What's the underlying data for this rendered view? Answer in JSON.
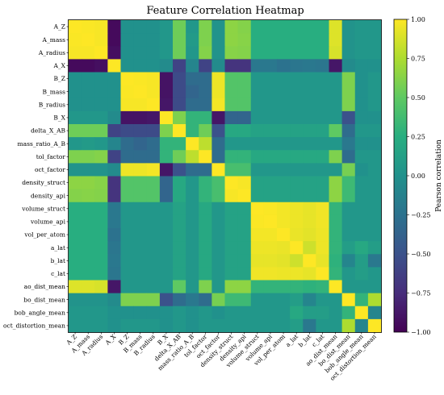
{
  "chart_data": {
    "type": "heatmap",
    "title": "Feature Correlation Heatmap",
    "labels": [
      "A_Z",
      "A_mass",
      "A_radius",
      "A_X",
      "B_Z",
      "B_mass",
      "B_radius",
      "B_X",
      "delta_X_AB",
      "mass_ratio_A_B",
      "tol_factor",
      "oct_factor",
      "density_struct",
      "density_api",
      "volume_struct",
      "volume_api",
      "vol_per_atom",
      "a_lat",
      "b_lat",
      "c_lat",
      "ao_dist_mean",
      "bo_dist_mean",
      "bob_angle_mean",
      "oct_distortion_mean"
    ],
    "values": [
      [
        1.0,
        0.99,
        0.98,
        -0.95,
        0.0,
        0.0,
        0.0,
        0.05,
        0.55,
        0.05,
        0.6,
        0.02,
        0.65,
        0.62,
        0.25,
        0.25,
        0.25,
        0.25,
        0.25,
        0.25,
        0.9,
        0.02,
        0.05,
        0.05
      ],
      [
        0.99,
        1.0,
        0.98,
        -0.95,
        0.0,
        0.0,
        0.0,
        0.05,
        0.55,
        0.08,
        0.6,
        0.02,
        0.65,
        0.63,
        0.25,
        0.25,
        0.25,
        0.25,
        0.25,
        0.25,
        0.9,
        0.02,
        0.05,
        0.05
      ],
      [
        0.98,
        0.98,
        1.0,
        -0.92,
        0.0,
        0.0,
        0.0,
        0.05,
        0.55,
        0.05,
        0.62,
        0.02,
        0.63,
        0.62,
        0.25,
        0.25,
        0.25,
        0.25,
        0.25,
        0.25,
        0.88,
        0.02,
        0.05,
        0.05
      ],
      [
        -0.95,
        -0.95,
        -0.92,
        1.0,
        0.0,
        0.0,
        0.0,
        -0.05,
        -0.6,
        -0.1,
        -0.6,
        -0.05,
        -0.7,
        -0.7,
        -0.2,
        -0.2,
        -0.25,
        -0.22,
        -0.2,
        -0.22,
        -0.88,
        -0.05,
        0.0,
        0.0
      ],
      [
        0.0,
        0.0,
        0.0,
        0.0,
        1.0,
        0.99,
        0.98,
        -0.9,
        -0.55,
        -0.3,
        -0.3,
        0.95,
        0.45,
        0.45,
        0.05,
        0.05,
        0.05,
        0.05,
        0.05,
        0.05,
        0.05,
        0.6,
        0.0,
        0.05
      ],
      [
        0.0,
        0.0,
        0.0,
        0.0,
        0.99,
        1.0,
        0.98,
        -0.9,
        -0.55,
        -0.35,
        -0.3,
        0.95,
        0.45,
        0.45,
        0.05,
        0.05,
        0.05,
        0.05,
        0.05,
        0.05,
        0.05,
        0.6,
        0.0,
        0.05
      ],
      [
        0.0,
        0.0,
        0.0,
        0.0,
        0.98,
        0.98,
        1.0,
        -0.88,
        -0.55,
        -0.3,
        -0.3,
        0.97,
        0.45,
        0.45,
        0.05,
        0.05,
        0.05,
        0.05,
        0.05,
        0.05,
        0.05,
        0.6,
        0.0,
        0.05
      ],
      [
        0.05,
        0.05,
        0.05,
        -0.05,
        -0.9,
        -0.9,
        -0.88,
        1.0,
        0.6,
        0.3,
        0.3,
        -0.88,
        -0.35,
        -0.35,
        0.05,
        0.05,
        0.05,
        0.05,
        0.05,
        0.05,
        0.05,
        -0.5,
        0.0,
        0.0
      ],
      [
        0.55,
        0.55,
        0.55,
        -0.6,
        -0.55,
        -0.55,
        -0.55,
        0.6,
        1.0,
        0.3,
        0.55,
        -0.5,
        0.2,
        0.2,
        0.15,
        0.15,
        0.15,
        0.15,
        0.15,
        0.15,
        0.5,
        -0.3,
        0.05,
        0.05
      ],
      [
        0.05,
        0.08,
        0.05,
        -0.1,
        -0.3,
        -0.35,
        -0.3,
        0.3,
        0.3,
        1.0,
        0.8,
        -0.3,
        0.05,
        0.05,
        0.05,
        0.05,
        0.05,
        0.05,
        0.05,
        0.05,
        0.05,
        -0.2,
        0.0,
        0.0
      ],
      [
        0.6,
        0.6,
        0.62,
        -0.6,
        -0.3,
        -0.3,
        -0.3,
        0.3,
        0.55,
        0.8,
        1.0,
        -0.3,
        0.3,
        0.3,
        0.2,
        0.2,
        0.2,
        0.2,
        0.2,
        0.2,
        0.6,
        -0.3,
        0.05,
        0.05
      ],
      [
        0.02,
        0.02,
        0.02,
        -0.05,
        0.95,
        0.95,
        0.97,
        -0.88,
        -0.5,
        -0.3,
        -0.3,
        1.0,
        0.4,
        0.4,
        0.05,
        0.05,
        0.05,
        0.05,
        0.05,
        0.05,
        0.05,
        0.58,
        0.0,
        0.05
      ],
      [
        0.65,
        0.65,
        0.63,
        -0.7,
        0.45,
        0.45,
        0.45,
        -0.35,
        0.2,
        0.05,
        0.3,
        0.4,
        1.0,
        0.98,
        0.15,
        0.15,
        0.15,
        0.15,
        0.15,
        0.15,
        0.65,
        0.35,
        0.05,
        0.05
      ],
      [
        0.62,
        0.63,
        0.62,
        -0.7,
        0.45,
        0.45,
        0.45,
        -0.35,
        0.2,
        0.05,
        0.3,
        0.4,
        0.98,
        1.0,
        0.15,
        0.15,
        0.15,
        0.15,
        0.15,
        0.15,
        0.65,
        0.35,
        0.05,
        0.05
      ],
      [
        0.25,
        0.25,
        0.25,
        -0.2,
        0.05,
        0.05,
        0.05,
        0.05,
        0.15,
        0.05,
        0.2,
        0.05,
        0.15,
        0.15,
        1.0,
        0.99,
        0.97,
        0.95,
        0.93,
        0.96,
        0.3,
        0.05,
        0.05,
        0.05
      ],
      [
        0.25,
        0.25,
        0.25,
        -0.2,
        0.05,
        0.05,
        0.05,
        0.05,
        0.15,
        0.05,
        0.2,
        0.05,
        0.15,
        0.15,
        0.99,
        1.0,
        0.97,
        0.95,
        0.93,
        0.96,
        0.3,
        0.05,
        0.05,
        0.05
      ],
      [
        0.25,
        0.25,
        0.25,
        -0.25,
        0.05,
        0.05,
        0.05,
        0.05,
        0.15,
        0.05,
        0.2,
        0.05,
        0.15,
        0.15,
        0.97,
        0.97,
        1.0,
        0.94,
        0.92,
        0.95,
        0.3,
        0.05,
        0.05,
        0.05
      ],
      [
        0.25,
        0.25,
        0.25,
        -0.22,
        0.05,
        0.05,
        0.05,
        0.05,
        0.15,
        0.05,
        0.2,
        0.05,
        0.15,
        0.15,
        0.95,
        0.95,
        0.94,
        1.0,
        0.85,
        0.95,
        0.3,
        0.1,
        0.2,
        0.1
      ],
      [
        0.25,
        0.25,
        0.25,
        -0.2,
        0.05,
        0.05,
        0.05,
        0.05,
        0.15,
        0.05,
        0.2,
        0.05,
        0.15,
        0.15,
        0.93,
        0.93,
        0.92,
        0.85,
        1.0,
        0.93,
        0.28,
        -0.1,
        0.1,
        -0.2
      ],
      [
        0.25,
        0.25,
        0.25,
        -0.22,
        0.05,
        0.05,
        0.05,
        0.05,
        0.15,
        0.05,
        0.2,
        0.05,
        0.15,
        0.15,
        0.96,
        0.96,
        0.95,
        0.95,
        0.93,
        1.0,
        0.3,
        0.05,
        0.1,
        0.05
      ],
      [
        0.9,
        0.9,
        0.88,
        -0.88,
        0.05,
        0.05,
        0.05,
        0.05,
        0.5,
        0.05,
        0.6,
        0.05,
        0.65,
        0.65,
        0.3,
        0.3,
        0.3,
        0.3,
        0.28,
        0.3,
        1.0,
        0.05,
        0.05,
        0.05
      ],
      [
        0.02,
        0.02,
        0.02,
        -0.05,
        0.6,
        0.6,
        0.6,
        -0.5,
        -0.3,
        -0.2,
        -0.3,
        0.58,
        0.35,
        0.35,
        0.05,
        0.05,
        0.05,
        0.1,
        -0.1,
        0.05,
        0.05,
        1.0,
        0.3,
        0.75
      ],
      [
        0.05,
        0.05,
        0.05,
        0.0,
        0.0,
        0.0,
        0.0,
        0.0,
        0.05,
        0.0,
        0.05,
        0.0,
        0.05,
        0.05,
        0.05,
        0.05,
        0.05,
        0.2,
        0.1,
        0.1,
        0.05,
        0.3,
        1.0,
        -0.1
      ],
      [
        0.05,
        0.05,
        0.05,
        0.0,
        0.05,
        0.05,
        0.05,
        0.0,
        0.05,
        0.0,
        0.05,
        0.05,
        0.05,
        0.05,
        0.05,
        0.05,
        0.05,
        0.1,
        -0.2,
        0.05,
        0.05,
        0.75,
        -0.1,
        1.0
      ]
    ],
    "colorbar": {
      "label": "Pearson correlation",
      "range": [
        -1.0,
        1.0
      ],
      "ticks": [
        "1.00",
        "0.75",
        "0.50",
        "0.25",
        "0.00",
        "−0.25",
        "−0.50",
        "−0.75",
        "−1.00"
      ],
      "colormap": "viridis"
    }
  }
}
